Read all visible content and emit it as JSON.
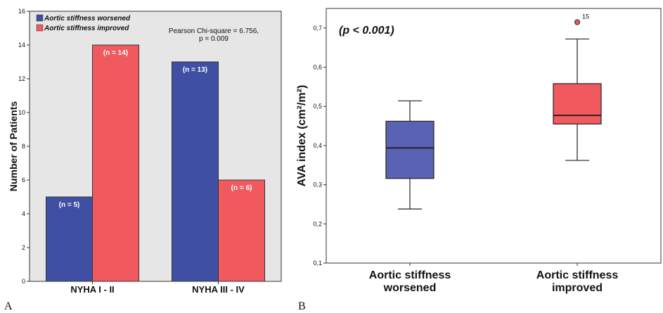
{
  "chart_data": [
    {
      "panel_label": "A",
      "type": "bar",
      "categories": [
        "NYHA I - II",
        "NYHA III - IV"
      ],
      "series": [
        {
          "name": "Aortic stiffness worsened",
          "values": [
            5,
            13
          ],
          "labels": [
            "(n = 5)",
            "(n = 13)"
          ],
          "color": "#3f4fa3"
        },
        {
          "name": "Aortic stiffness improved",
          "values": [
            14,
            6
          ],
          "labels": [
            "(n = 14)",
            "(n = 6)"
          ],
          "color": "#f05a5f"
        }
      ],
      "ylabel": "Number of Patients",
      "ylim": [
        0,
        16
      ],
      "yticks": [
        "0",
        "2",
        "4",
        "6",
        "8",
        "10",
        "12",
        "14",
        "16"
      ],
      "annotation": [
        "Pearson Chi-square = 6.756,",
        "p = 0.009"
      ],
      "legend": "top-left",
      "grid": false,
      "background": "#e6e6e6"
    },
    {
      "panel_label": "B",
      "type": "box",
      "categories": [
        "Aortic stiffness worsened",
        "Aortic stiffness improved"
      ],
      "category_lines": [
        [
          "Aortic stiffness",
          "worsened"
        ],
        [
          "Aortic stiffness",
          "improved"
        ]
      ],
      "boxes": [
        {
          "whisker_low": 0.238,
          "q1": 0.316,
          "median": 0.394,
          "q3": 0.462,
          "whisker_high": 0.514,
          "color": "#5a62b3"
        },
        {
          "whisker_low": 0.362,
          "q1": 0.455,
          "median": 0.477,
          "q3": 0.558,
          "whisker_high": 0.672,
          "color": "#f05a5f",
          "outliers": [
            {
              "value": 0.715,
              "label": "15"
            }
          ]
        }
      ],
      "ylabel": "AVA index (cm²/m²)",
      "ylim": [
        0.1,
        0.75
      ],
      "yticks": [
        "0,1",
        "0,2",
        "0,3",
        "0,4",
        "0,5",
        "0,6",
        "0,7"
      ],
      "annotation": "(p < 0.001)",
      "grid": false,
      "background": "#ffffff"
    }
  ]
}
